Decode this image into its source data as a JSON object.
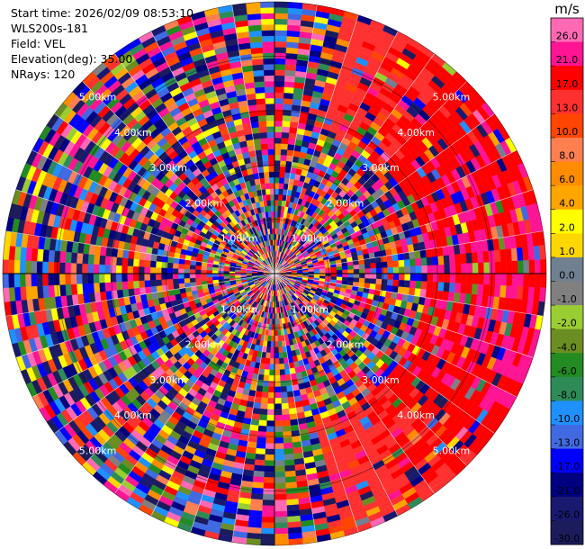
{
  "header": {
    "start_time": "Start time: 2026/02/09 08:53:10",
    "instrument": "WLS200s-181",
    "field": "Field: VEL",
    "elevation": "Elevation(deg): 35.00",
    "nrays": "NRays: 120"
  },
  "colorbar": {
    "unit": "m/s",
    "labels": [
      "26.0",
      "21.0",
      "17.0",
      "13.0",
      "10.0",
      "8.0",
      "6.0",
      "4.0",
      "2.0",
      "1.0",
      "0.0",
      "-1.0",
      "-2.0",
      "-4.0",
      "-6.0",
      "-8.0",
      "-10.0",
      "-13.0",
      "-17.0",
      "-21.0",
      "-26.0",
      "-30.0"
    ],
    "colors": [
      "#ff69b4",
      "#ff1493",
      "#ff0000",
      "#ff3030",
      "#ff4500",
      "#ff7f50",
      "#ff8c00",
      "#ffa500",
      "#ffff00",
      "#ffd700",
      "#708090",
      "#808080",
      "#9acd32",
      "#6b8e23",
      "#228b22",
      "#2e8b57",
      "#1e90ff",
      "#4169e1",
      "#0000ff",
      "#000080",
      "#191970",
      "#1c1c5c"
    ]
  },
  "chart_data": {
    "type": "ppi",
    "field": "VEL",
    "units": "m/s",
    "n_rays": 120,
    "elevation_deg": 35.0,
    "range_ring_labels": [
      "1.00km",
      "2.00km",
      "3.00km",
      "4.00km",
      "5.00km"
    ],
    "color_levels": [
      -30,
      -26,
      -21,
      -17,
      -13,
      -10,
      -8,
      -6,
      -4,
      -2,
      -1,
      0,
      1,
      2,
      4,
      6,
      8,
      10,
      13,
      17,
      21,
      26
    ],
    "pattern": "mostly noisy velocities; coherent positive (red/orange) velocities toward the east, ~13 to 21 m/s"
  }
}
